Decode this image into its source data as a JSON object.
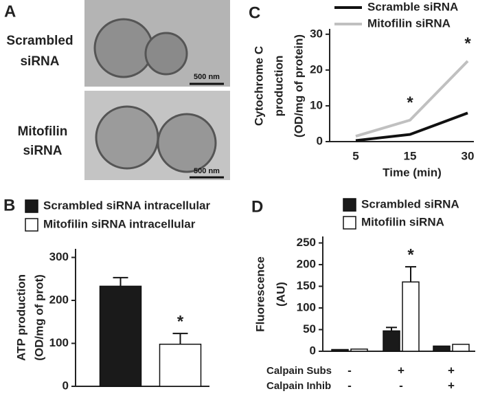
{
  "panel_a": {
    "label": "A",
    "rows": [
      {
        "label": [
          "Scrambled",
          "siRNA"
        ],
        "scale_bar": "500 nm"
      },
      {
        "label": [
          "Mitofilin",
          "siRNA"
        ],
        "scale_bar": "500 nm"
      }
    ]
  },
  "chart_data": [
    {
      "panel_label": "B",
      "type": "bar",
      "ylabel": [
        "ATP production",
        "(OD/mg of prot)"
      ],
      "series": [
        {
          "name": "Scrambled siRNA intracellular",
          "color": "#1a1a1a",
          "values": [
            233
          ],
          "errors": [
            20
          ],
          "annotations": [
            null
          ]
        },
        {
          "name": "Mitofilin siRNA intracellular",
          "color": "#ffffff",
          "values": [
            98
          ],
          "errors": [
            25
          ],
          "annotations": [
            "*"
          ]
        }
      ],
      "ylim": [
        0,
        320
      ],
      "yticks": [
        0,
        100,
        200,
        300
      ]
    },
    {
      "panel_label": "C",
      "type": "line",
      "ylabel": [
        "Cytochrome C",
        "production",
        "(OD/mg of protein)"
      ],
      "xlabel": "Time (min)",
      "categories": [
        "5",
        "15",
        "30"
      ],
      "series": [
        {
          "name": "Scramble siRNA",
          "color": "#111111",
          "values": [
            0.3,
            2,
            8
          ],
          "annotations": [
            null,
            null,
            null
          ]
        },
        {
          "name": "Mitofilin siRNA",
          "color": "#c0c0c0",
          "values": [
            1.5,
            6,
            22.5
          ],
          "annotations": [
            null,
            "*",
            "*"
          ]
        }
      ],
      "ylim": [
        0,
        31.5
      ],
      "yticks": [
        0,
        10,
        20,
        30
      ]
    },
    {
      "panel_label": "D",
      "type": "bar",
      "ylabel": [
        "Fluorescence",
        "(AU)"
      ],
      "series": [
        {
          "name": "Scrambled siRNA",
          "color": "#1a1a1a",
          "values": [
            4,
            47,
            12
          ],
          "errors": [
            null,
            8,
            null
          ],
          "annotations": [
            null,
            null,
            null
          ]
        },
        {
          "name": "Mitofilin siRNA",
          "color": "#ffffff",
          "values": [
            5,
            160,
            16
          ],
          "errors": [
            null,
            35,
            null
          ],
          "annotations": [
            null,
            "*",
            null
          ]
        }
      ],
      "ylim": [
        0,
        265
      ],
      "yticks": [
        0,
        50,
        100,
        150,
        200,
        250
      ],
      "conditions": [
        {
          "name": "Calpain Subs",
          "values": [
            "-",
            "+",
            "+"
          ]
        },
        {
          "name": "Calpain Inhib",
          "values": [
            "-",
            "-",
            "+"
          ]
        }
      ]
    }
  ]
}
